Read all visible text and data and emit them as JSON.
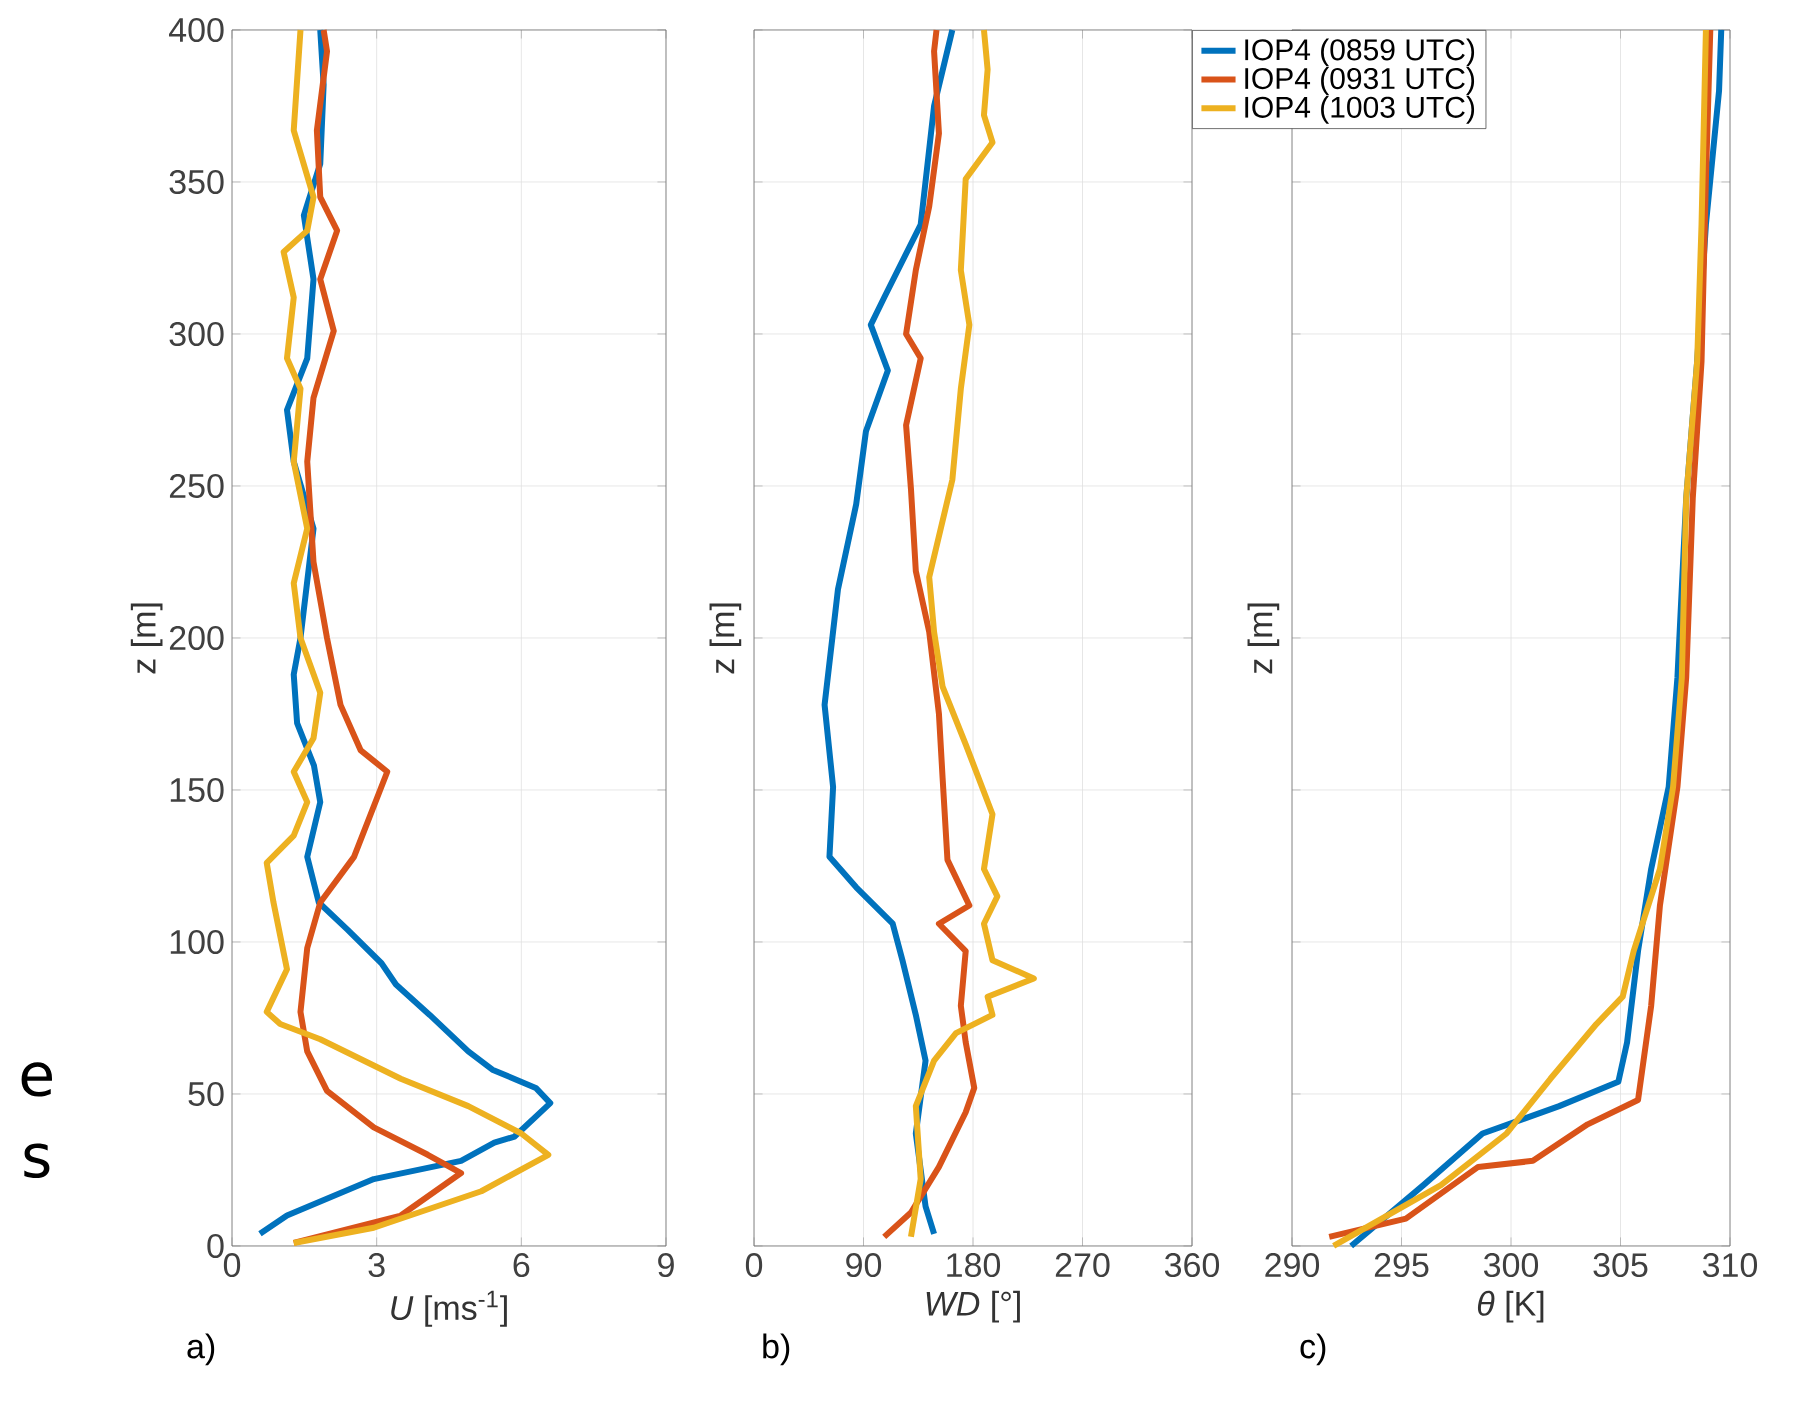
{
  "chart_data": [
    {
      "type": "line",
      "xlabel": "*U* [ms$^{-1}$]",
      "ylabel": "z [m]",
      "annotations": [
        "a)",
        "e",
        "s"
      ],
      "xlim": [
        0,
        9
      ],
      "xticks": [
        0,
        3,
        6,
        9
      ],
      "ylim": [
        0,
        400
      ],
      "yticks": [
        0,
        50,
        100,
        150,
        200,
        250,
        300,
        350,
        400
      ],
      "grid": true,
      "line_style": "solid",
      "marker": "none",
      "series": [
        {
          "color": "#0072bd",
          "x": [
            0.58,
            1.14,
            2.94,
            4.75,
            5.44,
            5.86,
            6.6,
            6.3,
            5.4,
            4.9,
            4.1,
            3.4,
            3.1,
            2.4,
            1.8,
            1.56,
            1.83,
            1.7,
            1.35,
            1.28,
            1.42,
            1.69,
            1.28,
            1.14,
            1.56,
            1.69,
            1.49,
            1.83,
            1.9,
            1.83
          ],
          "values": [
            4,
            10,
            22,
            28,
            34,
            36,
            47,
            52,
            58,
            64,
            76,
            86,
            93,
            104,
            113,
            128,
            146,
            158,
            172,
            188,
            200,
            236,
            258,
            275,
            292,
            318,
            339,
            356,
            382,
            400
          ]
        },
        {
          "color": "#d95319",
          "x": [
            1.28,
            3.5,
            4.75,
            4.06,
            2.94,
            1.97,
            1.56,
            1.42,
            1.56,
            1.83,
            2.53,
            3.22,
            2.67,
            2.25,
            1.97,
            1.69,
            1.56,
            1.69,
            2.11,
            1.83,
            2.18,
            1.83,
            1.76,
            1.97,
            1.9
          ],
          "values": [
            1,
            10,
            24,
            30,
            39,
            51,
            64,
            77,
            98,
            113,
            128,
            156,
            163,
            178,
            200,
            225,
            258,
            279,
            301,
            318,
            334,
            345,
            367,
            393,
            400
          ]
        },
        {
          "color": "#edb120",
          "x": [
            1.28,
            2.94,
            5.17,
            6.56,
            6.0,
            4.9,
            3.5,
            1.83,
            1.0,
            0.72,
            1.14,
            0.86,
            0.72,
            1.28,
            1.56,
            1.28,
            1.69,
            1.83,
            1.42,
            1.28,
            1.56,
            1.28,
            1.42,
            1.14,
            1.28,
            1.07,
            1.56,
            1.69,
            1.28,
            1.42
          ],
          "values": [
            1,
            6,
            18,
            30,
            37,
            46,
            55,
            68,
            73,
            77,
            91,
            113,
            126,
            135,
            146,
            156,
            167,
            182,
            200,
            218,
            236,
            258,
            282,
            292,
            312,
            327,
            334,
            345,
            367,
            400
          ]
        }
      ]
    },
    {
      "type": "line",
      "xlabel": "*WD* [°]",
      "ylabel": "z [m]",
      "annotations": [
        "b)"
      ],
      "xlim": [
        0,
        360
      ],
      "xticks": [
        0,
        90,
        180,
        270,
        360
      ],
      "ylim": [
        0,
        400
      ],
      "yticks": [
        0,
        50,
        100,
        150,
        200,
        250,
        300,
        350,
        400
      ],
      "tick_labels": "x",
      "grid": true,
      "line_style": "solid",
      "marker": "none",
      "series": [
        {
          "color": "#0072bd",
          "x": [
            148,
            141,
            133,
            141,
            133,
            122,
            114,
            84,
            62,
            65,
            58,
            69,
            84,
            92,
            110,
            96,
            107,
            137,
            148,
            163
          ],
          "values": [
            4,
            13,
            37,
            61,
            76,
            94,
            106,
            118,
            128,
            151,
            178,
            216,
            244,
            268,
            288,
            303,
            312,
            336,
            375,
            400
          ]
        },
        {
          "color": "#d95319",
          "x": [
            107,
            129,
            152,
            174,
            181,
            174,
            170,
            174,
            152,
            177,
            159,
            155,
            152,
            144,
            133,
            129,
            125,
            137,
            125,
            133,
            144,
            152,
            148,
            150
          ],
          "values": [
            3,
            11,
            26,
            44,
            52,
            67,
            79,
            97,
            106,
            112,
            127,
            154,
            175,
            202,
            222,
            249,
            270,
            292,
            300,
            321,
            342,
            366,
            393,
            400
          ]
        },
        {
          "color": "#edb120",
          "x": [
            129,
            137,
            133,
            148,
            166,
            196,
            192,
            230,
            196,
            189,
            200,
            189,
            196,
            174,
            155,
            148,
            144,
            163,
            170,
            177,
            170,
            174,
            196,
            189,
            192,
            189
          ],
          "values": [
            3,
            22,
            46,
            61,
            70,
            76,
            82,
            88,
            94,
            106,
            115,
            124,
            142,
            165,
            184,
            202,
            220,
            252,
            282,
            303,
            321,
            351,
            363,
            372,
            387,
            400
          ]
        }
      ]
    },
    {
      "type": "line",
      "xlabel": "*θ* [K]",
      "ylabel": "z [m]",
      "annotations": [
        "c)"
      ],
      "xlim": [
        290,
        310
      ],
      "xticks": [
        290,
        295,
        300,
        305,
        310
      ],
      "ylim": [
        0,
        400
      ],
      "yticks": [
        0,
        50,
        100,
        150,
        200,
        250,
        300,
        350,
        400
      ],
      "tick_labels": "x",
      "grid": true,
      "legend": "top left",
      "line_style": "solid",
      "marker": "none",
      "series": [
        {
          "name": "IOP4 (0859 UTC)",
          "color": "#0072bd",
          "x": [
            292.7,
            296.0,
            298.7,
            302.2,
            304.9,
            305.3,
            305.8,
            306.4,
            307.2,
            307.6,
            308.0,
            308.5,
            308.9,
            309.5,
            309.6
          ],
          "values": [
            0,
            20,
            37,
            46,
            54,
            67,
            97,
            124,
            151,
            187,
            246,
            291,
            336,
            380,
            400
          ]
        },
        {
          "name": "IOP4 (0931 UTC)",
          "color": "#d95319",
          "x": [
            291.7,
            295.2,
            298.5,
            301.0,
            303.5,
            305.8,
            306.4,
            306.8,
            307.6,
            308.0,
            308.3,
            308.7,
            308.9,
            309.1
          ],
          "values": [
            3,
            9,
            26,
            28,
            40,
            48,
            79,
            112,
            151,
            187,
            246,
            291,
            351,
            400
          ]
        },
        {
          "name": "IOP4 (1003 UTC)",
          "color": "#edb120",
          "x": [
            291.9,
            296.8,
            299.8,
            301.8,
            303.9,
            305.1,
            305.6,
            306.8,
            307.4,
            307.8,
            308.0,
            308.5,
            308.7,
            308.9
          ],
          "values": [
            0,
            20,
            37,
            55,
            73,
            82,
            97,
            124,
            151,
            187,
            246,
            291,
            336,
            400
          ]
        }
      ]
    }
  ]
}
